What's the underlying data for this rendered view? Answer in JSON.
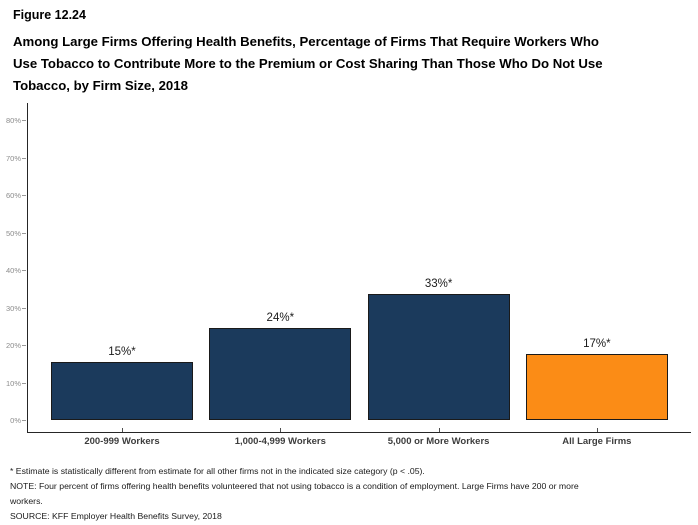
{
  "header": {
    "figure_label": "Figure 12.24",
    "title_lines": [
      "Among Large Firms Offering Health Benefits, Percentage of Firms That Require Workers Who",
      "Use Tobacco to Contribute More to the Premium or Cost Sharing Than Those Who Do Not Use",
      "Tobacco, by Firm Size, 2018"
    ]
  },
  "chart_data": {
    "type": "bar",
    "categories": [
      "200-999 Workers",
      "1,000-4,999 Workers",
      "5,000 or More Workers",
      "All Large Firms"
    ],
    "values": [
      15,
      24,
      33,
      17
    ],
    "value_labels": [
      "15%*",
      "24%*",
      "33%*",
      "17%*"
    ],
    "series": [
      {
        "name": "Percentage of Firms",
        "values": [
          15,
          24,
          33,
          17
        ]
      }
    ],
    "bar_colors": [
      "#1b3a5c",
      "#1b3a5c",
      "#1b3a5c",
      "#fb8c16"
    ],
    "bar_border_color": "#1a1a1a",
    "title": "",
    "xlabel": "",
    "ylabel": "",
    "ylim": [
      0,
      80
    ],
    "ytick_step": 10,
    "ytick_labels": [
      "0%",
      "10%",
      "20%",
      "30%",
      "40%",
      "50%",
      "60%",
      "70%",
      "80%"
    ],
    "grid": false,
    "legend_position": "none"
  },
  "colors": {
    "navy": "#1b3a5c",
    "orange": "#fb8c16",
    "axis": "#262626",
    "tick_label": "#8c8c8c",
    "category_label": "#3d3d3d"
  },
  "footnotes": {
    "lines": [
      "* Estimate is statistically different from estimate for all other firms not in the indicated size category (p < .05).",
      "NOTE: Four percent of firms offering health benefits volunteered that not using tobacco is a condition of employment. Large Firms have 200 or more",
      "workers.",
      "SOURCE: KFF Employer Health Benefits Survey, 2018"
    ]
  }
}
